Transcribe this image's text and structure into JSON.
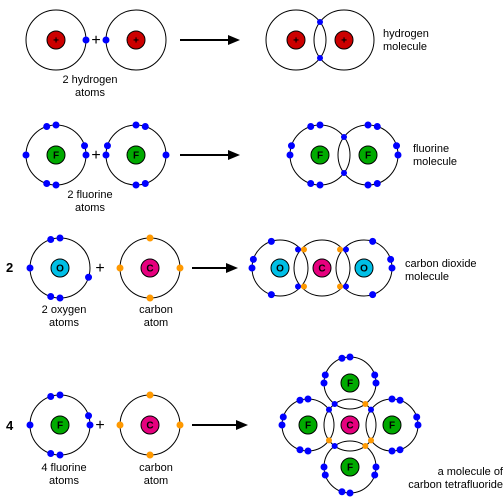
{
  "colors": {
    "electron_blue": "#0000ff",
    "electron_orange": "#ff9900",
    "shell_stroke": "#000000",
    "nucleus_stroke": "#000000",
    "nucleus_H_fill": "#cc0000",
    "nucleus_F_fill": "#00aa00",
    "nucleus_O_fill": "#00bfe6",
    "nucleus_C_fill": "#e6007e",
    "plus_symbol": "#000000",
    "arrow": "#000000",
    "text": "#000000",
    "background": "#ffffff"
  },
  "radii": {
    "shell": 30,
    "nucleus": 9,
    "electron": 3.0
  },
  "labels": {
    "hydrogen_left": "2 hydrogen\natoms",
    "hydrogen_right": "hydrogen\nmolecule",
    "fluorine_left": "2 fluorine\natoms",
    "fluorine_right": "fluorine\nmolecule",
    "oxygen_left": "2 oxygen\natoms",
    "carbon_single": "carbon\natom",
    "co2_right": "carbon dioxide\nmolecule",
    "fluorine4_left": "4 fluorine\natoms",
    "cf4_right": "a molecule of\ncarbon tetrafluoride",
    "coef_2": "2",
    "coef_4": "4",
    "sym_H": "+",
    "sym_F": "F",
    "sym_O": "O",
    "sym_C": "C"
  },
  "rows": [
    {
      "id": "hydrogen",
      "left": [
        {
          "nucleus": "H",
          "electrons": [
            {
              "angle": 0,
              "color": "blue"
            }
          ]
        },
        {
          "nucleus": "H",
          "electrons": [
            {
              "angle": 180,
              "color": "blue"
            }
          ]
        }
      ],
      "right_kind": "pair",
      "right": [
        {
          "nucleus": "H",
          "electrons": []
        },
        {
          "nucleus": "H",
          "electrons": []
        }
      ],
      "shared": [
        {
          "angle": 90,
          "color": "blue"
        },
        {
          "angle": 270,
          "color": "blue"
        }
      ]
    },
    {
      "id": "fluorine",
      "left": [
        {
          "nucleus": "F",
          "electrons": [
            {
              "angle": 0,
              "color": "blue"
            },
            {
              "angle": 18,
              "color": "blue"
            },
            {
              "angle": 90,
              "color": "blue"
            },
            {
              "angle": 108,
              "color": "blue"
            },
            {
              "angle": 180,
              "color": "blue"
            },
            {
              "angle": 252,
              "color": "blue"
            },
            {
              "angle": 270,
              "color": "blue"
            }
          ]
        },
        {
          "nucleus": "F",
          "electrons": [
            {
              "angle": 162,
              "color": "blue"
            },
            {
              "angle": 180,
              "color": "blue"
            },
            {
              "angle": 90,
              "color": "blue"
            },
            {
              "angle": 72,
              "color": "blue"
            },
            {
              "angle": 0,
              "color": "blue"
            },
            {
              "angle": 288,
              "color": "blue"
            },
            {
              "angle": 270,
              "color": "blue"
            }
          ]
        }
      ],
      "right_kind": "pair",
      "right": [
        {
          "nucleus": "F",
          "electrons": [
            {
              "angle": 90,
              "color": "blue"
            },
            {
              "angle": 108,
              "color": "blue"
            },
            {
              "angle": 180,
              "color": "blue"
            },
            {
              "angle": 162,
              "color": "blue"
            },
            {
              "angle": 252,
              "color": "blue"
            },
            {
              "angle": 270,
              "color": "blue"
            }
          ]
        },
        {
          "nucleus": "F",
          "electrons": [
            {
              "angle": 90,
              "color": "blue"
            },
            {
              "angle": 72,
              "color": "blue"
            },
            {
              "angle": 0,
              "color": "blue"
            },
            {
              "angle": 18,
              "color": "blue"
            },
            {
              "angle": 288,
              "color": "blue"
            },
            {
              "angle": 270,
              "color": "blue"
            }
          ]
        }
      ],
      "shared": [
        {
          "angle": 90,
          "color": "blue"
        },
        {
          "angle": 270,
          "color": "blue"
        }
      ]
    },
    {
      "id": "co2",
      "coef": "2",
      "left": [
        {
          "nucleus": "O",
          "electrons": [
            {
              "angle": 90,
              "color": "blue"
            },
            {
              "angle": 108,
              "color": "blue"
            },
            {
              "angle": 180,
              "color": "blue"
            },
            {
              "angle": 270,
              "color": "blue"
            },
            {
              "angle": 252,
              "color": "blue"
            },
            {
              "angle": 342,
              "color": "blue"
            }
          ]
        },
        {
          "nucleus": "C",
          "electrons": [
            {
              "angle": 0,
              "color": "orange"
            },
            {
              "angle": 90,
              "color": "orange"
            },
            {
              "angle": 180,
              "color": "orange"
            },
            {
              "angle": 270,
              "color": "orange"
            }
          ]
        }
      ],
      "right_kind": "triple",
      "right": [
        {
          "nucleus": "O",
          "electrons": [
            {
              "angle": 108,
              "color": "blue"
            },
            {
              "angle": 180,
              "color": "blue"
            },
            {
              "angle": 162,
              "color": "blue"
            },
            {
              "angle": 252,
              "color": "blue"
            }
          ]
        },
        {
          "nucleus": "C",
          "electrons": []
        },
        {
          "nucleus": "O",
          "electrons": [
            {
              "angle": 72,
              "color": "blue"
            },
            {
              "angle": 0,
              "color": "blue"
            },
            {
              "angle": 18,
              "color": "blue"
            },
            {
              "angle": 288,
              "color": "blue"
            }
          ]
        }
      ],
      "shared_left": [
        {
          "angle": 90,
          "color": "blue"
        },
        {
          "angle": 72,
          "color": "orange"
        },
        {
          "angle": 270,
          "color": "blue"
        },
        {
          "angle": 288,
          "color": "orange"
        }
      ],
      "shared_right": [
        {
          "angle": 90,
          "color": "blue"
        },
        {
          "angle": 108,
          "color": "orange"
        },
        {
          "angle": 270,
          "color": "blue"
        },
        {
          "angle": 252,
          "color": "orange"
        }
      ]
    },
    {
      "id": "cf4",
      "coef": "4",
      "left": [
        {
          "nucleus": "F",
          "electrons": [
            {
              "angle": 0,
              "color": "blue"
            },
            {
              "angle": 18,
              "color": "blue"
            },
            {
              "angle": 90,
              "color": "blue"
            },
            {
              "angle": 108,
              "color": "blue"
            },
            {
              "angle": 180,
              "color": "blue"
            },
            {
              "angle": 252,
              "color": "blue"
            },
            {
              "angle": 270,
              "color": "blue"
            }
          ]
        },
        {
          "nucleus": "C",
          "electrons": [
            {
              "angle": 0,
              "color": "orange"
            },
            {
              "angle": 90,
              "color": "orange"
            },
            {
              "angle": 180,
              "color": "orange"
            },
            {
              "angle": 270,
              "color": "orange"
            }
          ]
        }
      ],
      "right_kind": "cross",
      "center": {
        "nucleus": "C",
        "electrons": []
      },
      "arms": [
        {
          "dir": "top",
          "nucleus": "F",
          "lone": [
            {
              "angle": 0,
              "color": "blue"
            },
            {
              "angle": 18,
              "color": "blue"
            },
            {
              "angle": 90,
              "color": "blue"
            },
            {
              "angle": 108,
              "color": "blue"
            },
            {
              "angle": 162,
              "color": "blue"
            },
            {
              "angle": 180,
              "color": "blue"
            }
          ],
          "shared": [
            {
              "angle": 0,
              "color": "orange"
            },
            {
              "angle": 180,
              "color": "blue"
            }
          ]
        },
        {
          "dir": "right",
          "nucleus": "F",
          "lone": [
            {
              "angle": 90,
              "color": "blue"
            },
            {
              "angle": 72,
              "color": "blue"
            },
            {
              "angle": 0,
              "color": "blue"
            },
            {
              "angle": 18,
              "color": "blue"
            },
            {
              "angle": 288,
              "color": "blue"
            },
            {
              "angle": 270,
              "color": "blue"
            }
          ],
          "shared": [
            {
              "angle": 90,
              "color": "orange"
            },
            {
              "angle": 270,
              "color": "blue"
            }
          ]
        },
        {
          "dir": "bottom",
          "nucleus": "F",
          "lone": [
            {
              "angle": 0,
              "color": "blue"
            },
            {
              "angle": 342,
              "color": "blue"
            },
            {
              "angle": 270,
              "color": "blue"
            },
            {
              "angle": 252,
              "color": "blue"
            },
            {
              "angle": 198,
              "color": "blue"
            },
            {
              "angle": 180,
              "color": "blue"
            }
          ],
          "shared": [
            {
              "angle": 0,
              "color": "blue"
            },
            {
              "angle": 180,
              "color": "orange"
            }
          ]
        },
        {
          "dir": "left",
          "nucleus": "F",
          "lone": [
            {
              "angle": 90,
              "color": "blue"
            },
            {
              "angle": 108,
              "color": "blue"
            },
            {
              "angle": 180,
              "color": "blue"
            },
            {
              "angle": 162,
              "color": "blue"
            },
            {
              "angle": 252,
              "color": "blue"
            },
            {
              "angle": 270,
              "color": "blue"
            }
          ],
          "shared": [
            {
              "angle": 90,
              "color": "blue"
            },
            {
              "angle": 270,
              "color": "orange"
            }
          ]
        }
      ]
    }
  ]
}
